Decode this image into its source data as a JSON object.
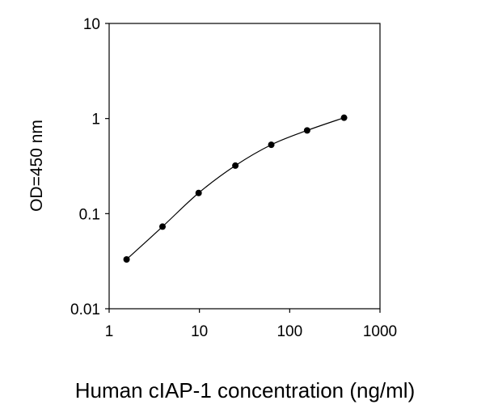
{
  "chart_data": {
    "type": "scatter",
    "title": "",
    "xlabel": "Human cIAP-1 concentration (ng/ml)",
    "ylabel": "OD=450 nm",
    "x_scale": "log",
    "y_scale": "log",
    "xlim": [
      1,
      1000
    ],
    "ylim": [
      0.01,
      10
    ],
    "x_ticks": [
      1,
      10,
      100,
      1000
    ],
    "x_tick_labels": [
      "1",
      "10",
      "100",
      "1000"
    ],
    "y_ticks": [
      0.01,
      0.1,
      1,
      10
    ],
    "y_tick_labels": [
      "0.01",
      "0.1",
      "1",
      "10"
    ],
    "grid": false,
    "legend": "none",
    "series": [
      {
        "x": [
          1.56,
          3.9,
          9.8,
          25,
          62.5,
          156,
          400
        ],
        "y": [
          0.033,
          0.073,
          0.165,
          0.32,
          0.53,
          0.75,
          1.02
        ],
        "marker": "circle",
        "connected": true,
        "color": "#000000"
      }
    ]
  }
}
